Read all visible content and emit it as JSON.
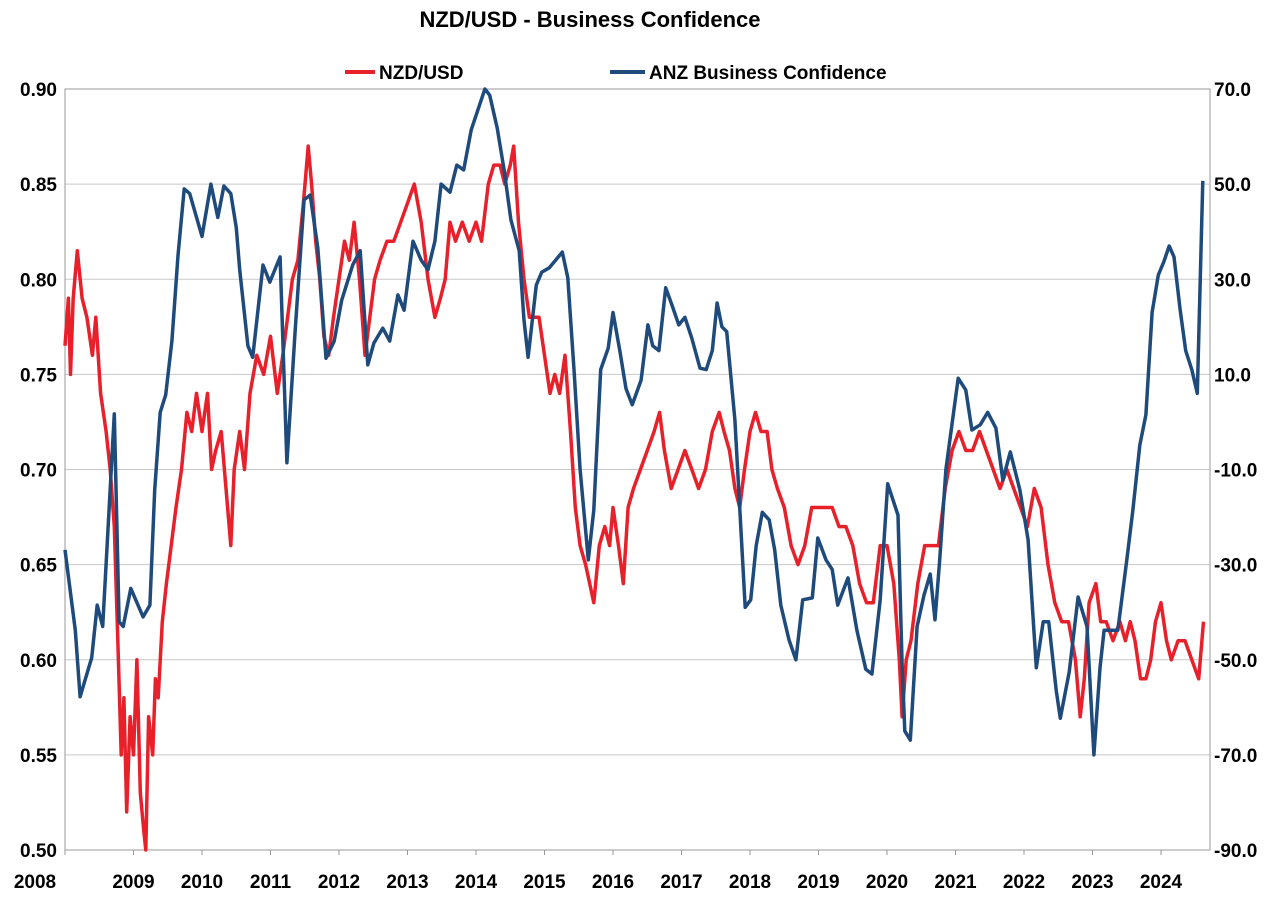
{
  "chart_data": {
    "type": "line",
    "title": "NZD/USD - Business Confidence",
    "xlabel": "",
    "ylabel_left": "",
    "ylabel_right": "",
    "xlim": [
      2008,
      2024.7
    ],
    "ylim_left": [
      0.5,
      0.9
    ],
    "ylim_right": [
      -90,
      70
    ],
    "grid": true,
    "legend_position": "top-center",
    "x_tick_labels": [
      "2008",
      "2009",
      "2010",
      "2011",
      "2012",
      "2013",
      "2014",
      "2015",
      "2016",
      "2017",
      "2018",
      "2019",
      "2020",
      "2021",
      "2022",
      "2023",
      "2024"
    ],
    "left_tick_labels": [
      "0.50",
      "0.55",
      "0.60",
      "0.65",
      "0.70",
      "0.75",
      "0.80",
      "0.85",
      "0.90"
    ],
    "right_tick_labels": [
      "-90.0",
      "-70.0",
      "-50.0",
      "-30.0",
      "-10.0",
      "10.0",
      "30.0",
      "50.0",
      "70.0"
    ],
    "series": [
      {
        "name": "NZD/USD",
        "axis": "left",
        "color": "#e8202a",
        "x": [
          2008.0,
          2008.05,
          2008.08,
          2008.12,
          2008.18,
          2008.25,
          2008.32,
          2008.4,
          2008.45,
          2008.52,
          2008.6,
          2008.66,
          2008.72,
          2008.78,
          2008.82,
          2008.86,
          2008.9,
          2008.95,
          2009.0,
          2009.05,
          2009.1,
          2009.15,
          2009.18,
          2009.22,
          2009.28,
          2009.32,
          2009.36,
          2009.42,
          2009.48,
          2009.55,
          2009.62,
          2009.7,
          2009.78,
          2009.85,
          2009.92,
          2010.0,
          2010.08,
          2010.14,
          2010.2,
          2010.28,
          2010.35,
          2010.42,
          2010.47,
          2010.55,
          2010.62,
          2010.7,
          2010.8,
          2010.9,
          2011.0,
          2011.1,
          2011.18,
          2011.25,
          2011.32,
          2011.4,
          2011.48,
          2011.55,
          2011.6,
          2011.66,
          2011.72,
          2011.78,
          2011.85,
          2011.92,
          2012.0,
          2012.08,
          2012.15,
          2012.22,
          2012.3,
          2012.38,
          2012.45,
          2012.52,
          2012.6,
          2012.7,
          2012.8,
          2012.9,
          2013.0,
          2013.1,
          2013.2,
          2013.3,
          2013.4,
          2013.48,
          2013.55,
          2013.62,
          2013.7,
          2013.8,
          2013.9,
          2014.0,
          2014.08,
          2014.18,
          2014.26,
          2014.35,
          2014.42,
          2014.5,
          2014.55,
          2014.62,
          2014.7,
          2014.78,
          2014.85,
          2014.92,
          2015.0,
          2015.08,
          2015.15,
          2015.22,
          2015.3,
          2015.38,
          2015.45,
          2015.52,
          2015.6,
          2015.66,
          2015.72,
          2015.8,
          2015.88,
          2015.95,
          2016.0,
          2016.08,
          2016.15,
          2016.22,
          2016.3,
          2016.4,
          2016.5,
          2016.6,
          2016.68,
          2016.75,
          2016.85,
          2016.95,
          2017.05,
          2017.15,
          2017.25,
          2017.35,
          2017.45,
          2017.55,
          2017.62,
          2017.7,
          2017.78,
          2017.85,
          2017.92,
          2018.0,
          2018.08,
          2018.16,
          2018.25,
          2018.32,
          2018.4,
          2018.5,
          2018.6,
          2018.7,
          2018.8,
          2018.9,
          2019.0,
          2019.1,
          2019.2,
          2019.3,
          2019.4,
          2019.5,
          2019.6,
          2019.7,
          2019.8,
          2019.9,
          2020.0,
          2020.1,
          2020.18,
          2020.22,
          2020.28,
          2020.35,
          2020.45,
          2020.55,
          2020.65,
          2020.75,
          2020.85,
          2020.95,
          2021.05,
          2021.15,
          2021.25,
          2021.35,
          2021.45,
          2021.55,
          2021.65,
          2021.75,
          2021.85,
          2021.95,
          2022.05,
          2022.15,
          2022.25,
          2022.35,
          2022.45,
          2022.55,
          2022.65,
          2022.75,
          2022.82,
          2022.88,
          2022.95,
          2023.05,
          2023.12,
          2023.2,
          2023.3,
          2023.4,
          2023.48,
          2023.55,
          2023.62,
          2023.7,
          2023.78,
          2023.85,
          2023.92,
          2024.0,
          2024.08,
          2024.15,
          2024.25,
          2024.35,
          2024.45,
          2024.55,
          2024.62
        ],
        "values": [
          0.765,
          0.79,
          0.75,
          0.79,
          0.815,
          0.79,
          0.78,
          0.76,
          0.78,
          0.74,
          0.72,
          0.7,
          0.67,
          0.6,
          0.55,
          0.58,
          0.52,
          0.57,
          0.55,
          0.6,
          0.53,
          0.51,
          0.5,
          0.57,
          0.55,
          0.59,
          0.58,
          0.62,
          0.64,
          0.66,
          0.68,
          0.7,
          0.73,
          0.72,
          0.74,
          0.72,
          0.74,
          0.7,
          0.71,
          0.72,
          0.69,
          0.66,
          0.7,
          0.72,
          0.7,
          0.74,
          0.76,
          0.75,
          0.77,
          0.74,
          0.76,
          0.78,
          0.8,
          0.81,
          0.84,
          0.87,
          0.85,
          0.82,
          0.8,
          0.77,
          0.76,
          0.78,
          0.8,
          0.82,
          0.81,
          0.83,
          0.8,
          0.76,
          0.78,
          0.8,
          0.81,
          0.82,
          0.82,
          0.83,
          0.84,
          0.85,
          0.83,
          0.8,
          0.78,
          0.79,
          0.8,
          0.83,
          0.82,
          0.83,
          0.82,
          0.83,
          0.82,
          0.85,
          0.86,
          0.86,
          0.85,
          0.86,
          0.87,
          0.83,
          0.8,
          0.78,
          0.78,
          0.78,
          0.76,
          0.74,
          0.75,
          0.74,
          0.76,
          0.72,
          0.68,
          0.66,
          0.65,
          0.64,
          0.63,
          0.66,
          0.67,
          0.66,
          0.68,
          0.66,
          0.64,
          0.68,
          0.69,
          0.7,
          0.71,
          0.72,
          0.73,
          0.71,
          0.69,
          0.7,
          0.71,
          0.7,
          0.69,
          0.7,
          0.72,
          0.73,
          0.72,
          0.71,
          0.69,
          0.68,
          0.7,
          0.72,
          0.73,
          0.72,
          0.72,
          0.7,
          0.69,
          0.68,
          0.66,
          0.65,
          0.66,
          0.68,
          0.68,
          0.68,
          0.68,
          0.67,
          0.67,
          0.66,
          0.64,
          0.63,
          0.63,
          0.66,
          0.66,
          0.64,
          0.6,
          0.57,
          0.6,
          0.61,
          0.64,
          0.66,
          0.66,
          0.66,
          0.69,
          0.71,
          0.72,
          0.71,
          0.71,
          0.72,
          0.71,
          0.7,
          0.69,
          0.7,
          0.69,
          0.68,
          0.67,
          0.69,
          0.68,
          0.65,
          0.63,
          0.62,
          0.62,
          0.6,
          0.57,
          0.59,
          0.63,
          0.64,
          0.62,
          0.62,
          0.61,
          0.62,
          0.61,
          0.62,
          0.61,
          0.59,
          0.59,
          0.6,
          0.62,
          0.63,
          0.61,
          0.6,
          0.61,
          0.61,
          0.6,
          0.59,
          0.62
        ]
      },
      {
        "name": "ANZ Business Confidence",
        "axis": "right",
        "color": "#1f4a7c",
        "x": [
          2008.0,
          2008.15,
          2008.22,
          2008.39,
          2008.47,
          2008.55,
          2008.72,
          2008.79,
          2008.85,
          2008.96,
          2009.14,
          2009.24,
          2009.31,
          2009.39,
          2009.47,
          2009.56,
          2009.65,
          2009.74,
          2009.82,
          2010.0,
          2010.13,
          2010.23,
          2010.32,
          2010.42,
          2010.5,
          2010.55,
          2010.67,
          2010.74,
          2010.89,
          2010.99,
          2011.14,
          2011.24,
          2011.36,
          2011.49,
          2011.58,
          2011.69,
          2011.81,
          2011.93,
          2012.04,
          2012.2,
          2012.31,
          2012.42,
          2012.51,
          2012.64,
          2012.74,
          2012.86,
          2012.95,
          2013.08,
          2013.2,
          2013.3,
          2013.4,
          2013.49,
          2013.62,
          2013.72,
          2013.82,
          2013.93,
          2014.13,
          2014.2,
          2014.31,
          2014.41,
          2014.51,
          2014.63,
          2014.7,
          2014.76,
          2014.88,
          2014.96,
          2015.07,
          2015.26,
          2015.34,
          2015.43,
          2015.52,
          2015.64,
          2015.72,
          2015.82,
          2015.93,
          2016.0,
          2016.1,
          2016.19,
          2016.28,
          2016.41,
          2016.51,
          2016.58,
          2016.67,
          2016.77,
          2016.86,
          2016.96,
          2017.05,
          2017.15,
          2017.27,
          2017.36,
          2017.45,
          2017.52,
          2017.59,
          2017.66,
          2017.78,
          2017.93,
          2018.01,
          2018.09,
          2018.18,
          2018.28,
          2018.36,
          2018.45,
          2018.57,
          2018.67,
          2018.77,
          2018.91,
          2018.99,
          2019.11,
          2019.2,
          2019.28,
          2019.43,
          2019.56,
          2019.69,
          2019.78,
          2019.9,
          2020.01,
          2020.16,
          2020.22,
          2020.26,
          2020.34,
          2020.44,
          2020.54,
          2020.63,
          2020.7,
          2020.77,
          2020.86,
          2021.04,
          2021.15,
          2021.24,
          2021.36,
          2021.47,
          2021.59,
          2021.69,
          2021.8,
          2021.94,
          2022.06,
          2022.18,
          2022.28,
          2022.36,
          2022.47,
          2022.53,
          2022.66,
          2022.79,
          2022.92,
          2023.02,
          2023.11,
          2023.17,
          2023.37,
          2023.5,
          2023.59,
          2023.69,
          2023.78,
          2023.87,
          2023.96,
          2024.04,
          2024.12,
          2024.19,
          2024.28,
          2024.36,
          2024.45,
          2024.53,
          2024.61
        ],
        "values": [
          -26.9,
          -43.8,
          -57.8,
          -49.6,
          -38.5,
          -43,
          1.7,
          -42,
          -43,
          -35,
          -41,
          -38.5,
          -14.3,
          2,
          5.7,
          17,
          35,
          49,
          48,
          39,
          50,
          43,
          49.6,
          48,
          40.8,
          32,
          16,
          13.6,
          33,
          29.4,
          34.7,
          -8.6,
          19.3,
          46.7,
          47.7,
          36.6,
          13.4,
          17,
          25.6,
          33,
          36,
          12,
          16.6,
          19.7,
          17,
          26.7,
          23.5,
          38,
          34,
          32,
          38,
          50,
          48.3,
          54,
          53,
          61.4,
          70,
          68.7,
          61.8,
          53,
          42.5,
          36,
          21.4,
          13.6,
          28.8,
          31.5,
          32.4,
          35.7,
          30.3,
          11,
          -10,
          -29,
          -18.5,
          11,
          15.5,
          23,
          15,
          7,
          3.6,
          8.8,
          20.4,
          16,
          15,
          28.2,
          24.6,
          20.4,
          22,
          17.6,
          11.3,
          11,
          15,
          25,
          20,
          19,
          0.4,
          -39,
          -37.4,
          -26,
          -19,
          -20.6,
          -26.9,
          -38.5,
          -45.8,
          -50,
          -37.4,
          -37,
          -24.4,
          -29,
          -31,
          -38.5,
          -32.8,
          -43.8,
          -52,
          -53,
          -37.4,
          -13,
          -19.6,
          -51,
          -65,
          -66.9,
          -43,
          -36.4,
          -32,
          -41.6,
          -29,
          -10,
          9.2,
          6.7,
          -1.7,
          -0.6,
          2,
          -1.3,
          -12.2,
          -6.3,
          -14.3,
          -24.8,
          -51.7,
          -42,
          -42,
          -56.4,
          -62.3,
          -52.6,
          -36.8,
          -43,
          -70,
          -51.7,
          -43.8,
          -43.8,
          -29,
          -18.5,
          -4.9,
          1.5,
          23,
          30.9,
          33.6,
          37,
          34.7,
          23.5,
          15,
          11,
          6,
          50.7
        ]
      }
    ]
  }
}
